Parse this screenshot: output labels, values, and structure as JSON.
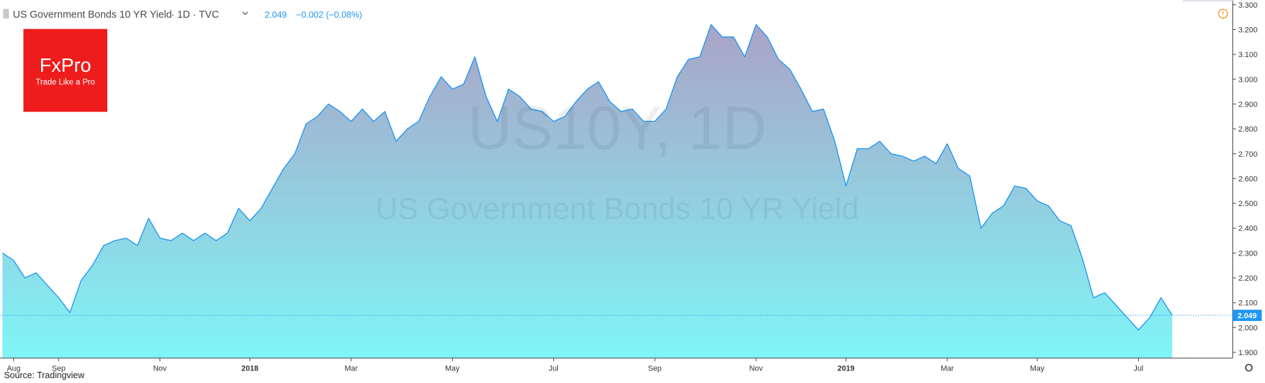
{
  "chart_data": {
    "type": "area",
    "title": "US Government Bonds 10 YR Yield",
    "header_meta": "· 1D · TVC",
    "change": "−0.002 (−0.08%)",
    "watermark": "US10Y, 1D",
    "logo": "FxPro",
    "logo_tagline": "Trade Like a Pro",
    "source": "Source: Tradingview",
    "categories": [
      null,
      "Aug",
      null,
      null,
      null,
      "Sep",
      null,
      null,
      null,
      null,
      null,
      null,
      null,
      null,
      "Nov",
      null,
      null,
      null,
      null,
      null,
      null,
      null,
      "2018",
      null,
      null,
      null,
      null,
      null,
      null,
      null,
      null,
      "Mar",
      null,
      null,
      null,
      null,
      null,
      null,
      null,
      null,
      "May",
      null,
      null,
      null,
      null,
      null,
      null,
      null,
      null,
      "Jul",
      null,
      null,
      null,
      null,
      null,
      null,
      null,
      null,
      "Sep",
      null,
      null,
      null,
      null,
      null,
      null,
      null,
      null,
      "Nov",
      null,
      null,
      null,
      null,
      null,
      null,
      null,
      "2019",
      null,
      null,
      null,
      null,
      null,
      null,
      null,
      null,
      "Mar",
      null,
      null,
      null,
      null,
      null,
      null,
      null,
      "May",
      null,
      null,
      null,
      null,
      null,
      null,
      null,
      null,
      "Jul",
      null,
      null,
      null
    ],
    "series": [
      {
        "name": "US10Y",
        "color": "#2196f3",
        "values": [
          2.3,
          2.27,
          2.2,
          2.22,
          2.17,
          2.12,
          2.06,
          2.19,
          2.25,
          2.33,
          2.35,
          2.36,
          2.33,
          2.44,
          2.36,
          2.35,
          2.38,
          2.35,
          2.38,
          2.35,
          2.38,
          2.48,
          2.43,
          2.48,
          2.56,
          2.64,
          2.7,
          2.82,
          2.85,
          2.9,
          2.87,
          2.83,
          2.88,
          2.83,
          2.87,
          2.75,
          2.8,
          2.83,
          2.93,
          3.01,
          2.96,
          2.98,
          3.09,
          2.93,
          2.83,
          2.96,
          2.93,
          2.88,
          2.87,
          2.83,
          2.85,
          2.91,
          2.96,
          2.99,
          2.91,
          2.87,
          2.88,
          2.83,
          2.83,
          2.88,
          3.01,
          3.08,
          3.09,
          3.22,
          3.17,
          3.17,
          3.09,
          3.22,
          3.17,
          3.08,
          3.04,
          2.96,
          2.87,
          2.88,
          2.75,
          2.57,
          2.72,
          2.72,
          2.75,
          2.7,
          2.69,
          2.67,
          2.69,
          2.66,
          2.74,
          2.64,
          2.61,
          2.4,
          2.46,
          2.49,
          2.57,
          2.56,
          2.51,
          2.49,
          2.43,
          2.41,
          2.28,
          2.12,
          2.14,
          2.09,
          2.04,
          1.99,
          2.04,
          2.12,
          2.049
        ]
      }
    ],
    "ylim": [
      1.877,
      3.319
    ],
    "yticks": [
      {
        "value": 1.9,
        "label": "1.900"
      },
      {
        "value": 2.0,
        "label": "2.000"
      },
      {
        "value": 2.1,
        "label": "2.100"
      },
      {
        "value": 2.2,
        "label": "2.200"
      },
      {
        "value": 2.3,
        "label": "2.300"
      },
      {
        "value": 2.4,
        "label": "2.400"
      },
      {
        "value": 2.5,
        "label": "2.500"
      },
      {
        "value": 2.6,
        "label": "2.600"
      },
      {
        "value": 2.7,
        "label": "2.700"
      },
      {
        "value": 2.8,
        "label": "2.800"
      },
      {
        "value": 2.9,
        "label": "2.900"
      },
      {
        "value": 3.0,
        "label": "3.000"
      },
      {
        "value": 3.1,
        "label": "3.100"
      },
      {
        "value": 3.2,
        "label": "3.200"
      },
      {
        "value": 3.3,
        "label": "3.300"
      }
    ],
    "grid": false
  }
}
